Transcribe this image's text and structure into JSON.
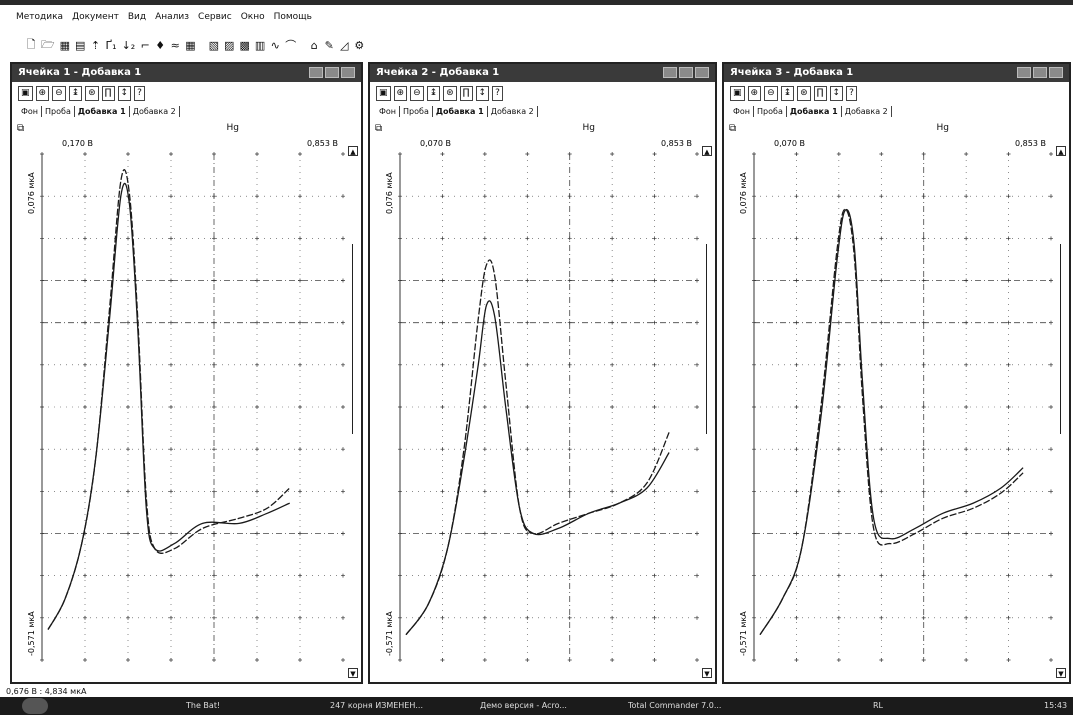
{
  "menu": [
    "Методика",
    "Документ",
    "Вид",
    "Анализ",
    "Сервис",
    "Окно",
    "Помощь"
  ],
  "toolbar_icons": [
    "new-file-icon",
    "open-file-icon",
    "save-icon",
    "grid-icon",
    "step1-icon",
    "step2-icon",
    "step3-icon",
    "cursor-icon",
    "drop-icon",
    "electrode-icon",
    "chart1-icon",
    "chart2-icon",
    "chart3-icon",
    "chart4-icon",
    "table-icon",
    "curve-icon",
    "trace-icon",
    "calc-icon",
    "edit-icon",
    "plot-icon",
    "settings-icon"
  ],
  "toolbar_glyphs": [
    "🗋",
    "🗁",
    "▦",
    "▤",
    "⇡",
    "Ґ₁",
    "↓₂",
    "⌐",
    "♦",
    "≈",
    "▦",
    "▧",
    "▨",
    "▩",
    "▥",
    "∿",
    "⌒",
    "⌂",
    "✎",
    "◿",
    "⚙"
  ],
  "windows": [
    {
      "title": "Ячейка 1 - Добавка 1",
      "tabs": [
        "Фон",
        "Проба",
        "Добавка 1",
        "Добавка 2"
      ],
      "active_tab": 2,
      "element": "Hg",
      "xstart": "0,170 В",
      "xend": "0,853 В",
      "ytop": "0,076 мкА",
      "ybot": "-0,571 мкА"
    },
    {
      "title": "Ячейка 2 - Добавка 1",
      "tabs": [
        "Фон",
        "Проба",
        "Добавка 1",
        "Добавка 2"
      ],
      "active_tab": 2,
      "element": "Hg",
      "xstart": "0,070 В",
      "xend": "0,853 В",
      "ytop": "0,076 мкА",
      "ybot": "-0,571 мкА"
    },
    {
      "title": "Ячейка 3 - Добавка 1",
      "tabs": [
        "Фон",
        "Проба",
        "Добавка 1",
        "Добавка 2"
      ],
      "active_tab": 2,
      "element": "Hg",
      "xstart": "0,070 В",
      "xend": "0,853 В",
      "ytop": "0,076 мкА",
      "ybot": "-0,571 мкА"
    }
  ],
  "window_tool_labels": [
    "▣",
    "⊕",
    "⊖",
    "↨",
    "⊛",
    "∏",
    "↕",
    "?"
  ],
  "status": "0,676 В : 4,834 мкА",
  "taskbar": {
    "items": [
      "The Bat!",
      "247 корня ИЗМЕНЕН...",
      "Демо версия - Acro...",
      "Total Commander 7.0..."
    ],
    "lang": "RL",
    "clock": "15:43"
  },
  "colors": {
    "curve": "#1a1a1a",
    "titlebar": "#3a3a3a",
    "taskbar": "#1b1b1b"
  },
  "chart_data": [
    {
      "type": "line",
      "xlabel": "",
      "ylabel": "",
      "series": [
        {
          "values": []
        },
        {
          "values": []
        }
      ]
    },
    {
      "type": "line",
      "xlabel": "",
      "ylabel": "",
      "series": [
        {
          "values": []
        },
        {
          "values": []
        }
      ]
    },
    {
      "type": "line",
      "xlabel": "",
      "ylabel": "",
      "series": [
        {
          "values": []
        },
        {
          "values": []
        }
      ]
    }
  ]
}
